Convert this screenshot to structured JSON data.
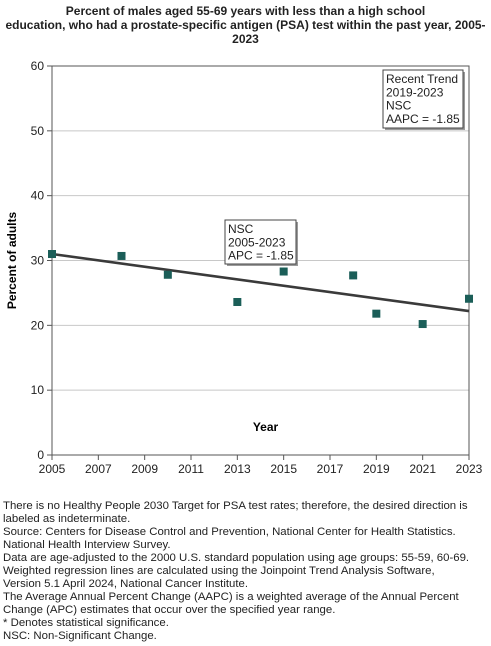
{
  "title_lines": [
    "Percent of males aged 55-69 years with less than a high school",
    "education, who had a prostate-specific antigen (PSA) test within the past year, 2005-",
    "2023"
  ],
  "chart_data": {
    "type": "scatter",
    "title": "Percent of males aged 55-69 years with less than a high school education, who had a prostate-specific antigen (PSA) test within the past year, 2005-2023",
    "xlabel": "Year",
    "ylabel": "Percent of adults",
    "xlim": [
      2005,
      2023
    ],
    "ylim": [
      0,
      60
    ],
    "x_ticks": [
      "2005",
      "2007",
      "2009",
      "2011",
      "2013",
      "2015",
      "2017",
      "2019",
      "2021",
      "2023"
    ],
    "y_ticks": [
      "0",
      "10",
      "20",
      "30",
      "40",
      "50",
      "60"
    ],
    "grid": true,
    "points": {
      "x": [
        2005,
        2008,
        2010,
        2013,
        2015,
        2018,
        2019,
        2021,
        2023
      ],
      "y": [
        31.0,
        30.7,
        27.8,
        23.6,
        28.3,
        27.7,
        21.8,
        20.2,
        24.1
      ],
      "color": "#1b5e58"
    },
    "trend": {
      "x": [
        2005,
        2023
      ],
      "y": [
        31.0,
        22.2
      ],
      "color": "#3a3a3a"
    },
    "annotations": [
      {
        "lines": [
          "NSC",
          "2005-2023",
          "APC = -1.85"
        ]
      },
      {
        "lines": [
          "Recent Trend",
          "2019-2023",
          "NSC",
          "AAPC = -1.85"
        ]
      }
    ]
  },
  "notes": [
    "There is no Healthy People 2030 Target for PSA test rates; therefore, the desired direction is",
    "labeled as indeterminate.",
    "Source: Centers for Disease Control and Prevention, National Center for Health Statistics.",
    "National Health Interview Survey.",
    "Data are age-adjusted to the 2000 U.S. standard population using age groups: 55-59, 60-69.",
    "Weighted regression lines are calculated using the Joinpoint Trend Analysis Software,",
    "Version 5.1 April 2024, National Cancer Institute.",
    "The Average Annual Percent Change (AAPC) is a weighted average of the Annual Percent",
    "Change (APC) estimates that occur over the specified year range.",
    "* Denotes statistical significance.",
    "NSC: Non-Significant Change."
  ]
}
